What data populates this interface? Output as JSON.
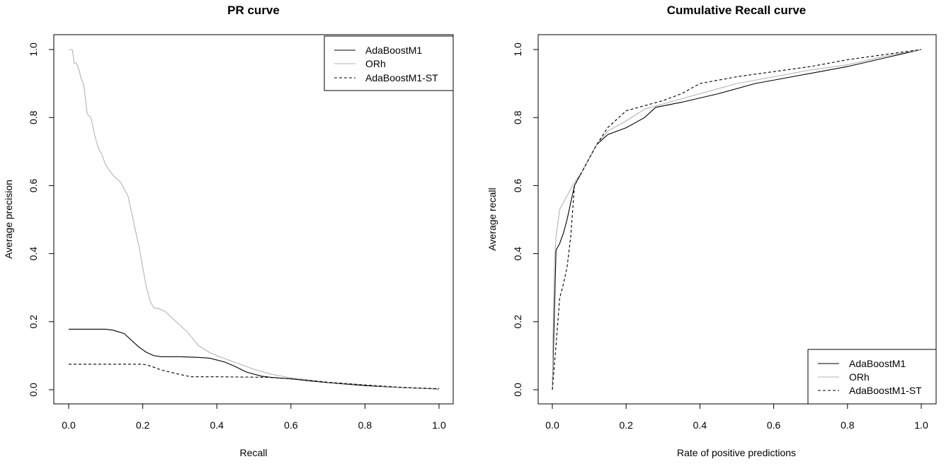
{
  "chart_data": [
    {
      "type": "line",
      "title": "PR curve",
      "xlabel": "Recall",
      "ylabel": "Average precision",
      "xlim": [
        0,
        1
      ],
      "ylim": [
        0,
        1
      ],
      "xticks": [
        "0.0",
        "0.2",
        "0.4",
        "0.6",
        "0.8",
        "1.0"
      ],
      "yticks": [
        "0.0",
        "0.2",
        "0.4",
        "0.6",
        "0.8",
        "1.0"
      ],
      "legend_position": "top-right",
      "series": [
        {
          "name": "AdaBoostM1",
          "color": "#000000",
          "dash": "solid",
          "x": [
            0.0,
            0.05,
            0.1,
            0.12,
            0.15,
            0.17,
            0.19,
            0.21,
            0.23,
            0.25,
            0.3,
            0.35,
            0.38,
            0.42,
            0.45,
            0.48,
            0.52,
            0.55,
            0.6,
            0.65,
            0.7,
            0.8,
            0.9,
            1.0
          ],
          "y": [
            0.178,
            0.178,
            0.178,
            0.175,
            0.165,
            0.145,
            0.125,
            0.11,
            0.1,
            0.097,
            0.097,
            0.095,
            0.093,
            0.082,
            0.068,
            0.052,
            0.04,
            0.036,
            0.032,
            0.026,
            0.021,
            0.012,
            0.006,
            0.002
          ]
        },
        {
          "name": "ORh",
          "color": "#b4b4b4",
          "dash": "solid",
          "x": [
            0.0,
            0.01,
            0.015,
            0.02,
            0.025,
            0.03,
            0.035,
            0.04,
            0.045,
            0.05,
            0.06,
            0.07,
            0.08,
            0.09,
            0.1,
            0.12,
            0.14,
            0.16,
            0.17,
            0.18,
            0.19,
            0.2,
            0.21,
            0.22,
            0.23,
            0.24,
            0.26,
            0.28,
            0.3,
            0.32,
            0.35,
            0.38,
            0.4,
            0.45,
            0.5,
            0.55,
            0.6,
            0.7,
            0.8,
            0.9,
            1.0
          ],
          "y": [
            1.0,
            1.0,
            0.96,
            0.96,
            0.95,
            0.93,
            0.91,
            0.9,
            0.86,
            0.81,
            0.8,
            0.75,
            0.71,
            0.69,
            0.66,
            0.63,
            0.61,
            0.57,
            0.52,
            0.47,
            0.42,
            0.36,
            0.3,
            0.26,
            0.24,
            0.24,
            0.23,
            0.21,
            0.19,
            0.17,
            0.13,
            0.11,
            0.1,
            0.08,
            0.06,
            0.045,
            0.035,
            0.022,
            0.014,
            0.006,
            0.003
          ]
        },
        {
          "name": "AdaBoostM1-ST",
          "color": "#000000",
          "dash": "dashed",
          "x": [
            0.0,
            0.1,
            0.2,
            0.22,
            0.25,
            0.3,
            0.33,
            0.4,
            0.5,
            0.55,
            0.6,
            0.7,
            0.8,
            0.9,
            1.0
          ],
          "y": [
            0.075,
            0.075,
            0.075,
            0.07,
            0.058,
            0.045,
            0.038,
            0.038,
            0.037,
            0.036,
            0.032,
            0.022,
            0.014,
            0.007,
            0.003
          ]
        }
      ]
    },
    {
      "type": "line",
      "title": "Cumulative Recall curve",
      "xlabel": "Rate of positive predictions",
      "ylabel": "Average recall",
      "xlim": [
        0,
        1
      ],
      "ylim": [
        0,
        1
      ],
      "xticks": [
        "0.0",
        "0.2",
        "0.4",
        "0.6",
        "0.8",
        "1.0"
      ],
      "yticks": [
        "0.0",
        "0.2",
        "0.4",
        "0.6",
        "0.8",
        "1.0"
      ],
      "legend_position": "bottom-right",
      "series": [
        {
          "name": "AdaBoostM1",
          "color": "#000000",
          "dash": "solid",
          "x": [
            0.0,
            0.005,
            0.01,
            0.02,
            0.03,
            0.04,
            0.05,
            0.06,
            0.08,
            0.1,
            0.12,
            0.15,
            0.2,
            0.25,
            0.28,
            0.35,
            0.45,
            0.55,
            0.65,
            0.8,
            0.9,
            1.0
          ],
          "y": [
            0.0,
            0.2,
            0.41,
            0.43,
            0.46,
            0.5,
            0.55,
            0.6,
            0.64,
            0.68,
            0.72,
            0.75,
            0.77,
            0.8,
            0.83,
            0.845,
            0.87,
            0.9,
            0.92,
            0.95,
            0.975,
            1.0
          ]
        },
        {
          "name": "ORh",
          "color": "#b4b4b4",
          "dash": "solid",
          "x": [
            0.0,
            0.003,
            0.006,
            0.01,
            0.02,
            0.04,
            0.06,
            0.08,
            0.1,
            0.12,
            0.15,
            0.2,
            0.25,
            0.3,
            0.4,
            0.5,
            0.6,
            0.7,
            0.8,
            0.9,
            1.0
          ],
          "y": [
            0.0,
            0.25,
            0.37,
            0.45,
            0.53,
            0.57,
            0.61,
            0.64,
            0.68,
            0.72,
            0.76,
            0.79,
            0.825,
            0.84,
            0.87,
            0.9,
            0.92,
            0.94,
            0.955,
            0.98,
            1.0
          ]
        },
        {
          "name": "AdaBoostM1-ST",
          "color": "#000000",
          "dash": "dashed",
          "x": [
            0.0,
            0.01,
            0.02,
            0.03,
            0.04,
            0.05,
            0.06,
            0.08,
            0.1,
            0.12,
            0.15,
            0.2,
            0.25,
            0.3,
            0.35,
            0.4,
            0.5,
            0.6,
            0.7,
            0.8,
            0.9,
            1.0
          ],
          "y": [
            0.0,
            0.13,
            0.27,
            0.31,
            0.36,
            0.45,
            0.6,
            0.64,
            0.68,
            0.72,
            0.77,
            0.82,
            0.835,
            0.85,
            0.87,
            0.9,
            0.92,
            0.935,
            0.95,
            0.97,
            0.985,
            1.0
          ]
        }
      ]
    }
  ]
}
